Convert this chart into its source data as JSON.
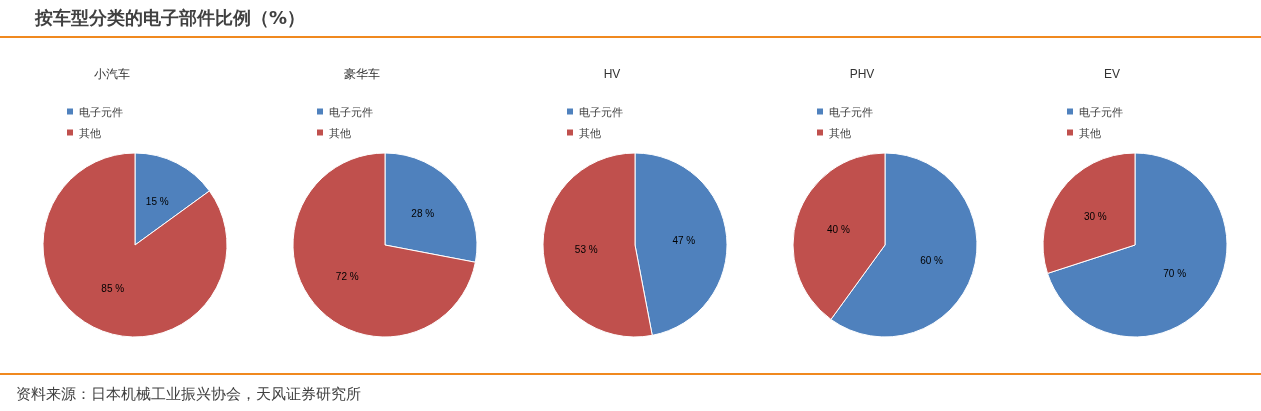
{
  "chart_data": [
    {
      "type": "other",
      "title": "按车型分类的电子部件比例（%）",
      "annotations": [
        "资料来源：日本机械工业振兴协会，天风证券研究所"
      ]
    },
    {
      "type": "pie",
      "title": "小汽车",
      "categories": [
        "电子元件",
        "其他"
      ],
      "values": [
        15,
        85
      ],
      "colors": [
        "#4f81bd",
        "#c0504d"
      ],
      "value_labels": [
        "15 %",
        "85 %"
      ],
      "legend": "top left"
    },
    {
      "type": "pie",
      "title": "豪华车",
      "categories": [
        "电子元件",
        "其他"
      ],
      "values": [
        28,
        72
      ],
      "colors": [
        "#4f81bd",
        "#c0504d"
      ],
      "value_labels": [
        "28 %",
        "72 %"
      ],
      "legend": "top left"
    },
    {
      "type": "pie",
      "title": "HV",
      "categories": [
        "电子元件",
        "其他"
      ],
      "values": [
        47,
        53
      ],
      "colors": [
        "#4f81bd",
        "#c0504d"
      ],
      "value_labels": [
        "47 %",
        "53 %"
      ],
      "legend": "top left"
    },
    {
      "type": "pie",
      "title": "PHV",
      "categories": [
        "电子元件",
        "其他"
      ],
      "values": [
        60,
        40
      ],
      "colors": [
        "#4f81bd",
        "#c0504d"
      ],
      "value_labels": [
        "60 %",
        "40 %"
      ],
      "legend": "top left"
    },
    {
      "type": "pie",
      "title": "EV",
      "categories": [
        "电子元件",
        "其他"
      ],
      "values": [
        70,
        30
      ],
      "colors": [
        "#4f81bd",
        "#c0504d"
      ],
      "value_labels": [
        "70 %",
        "30 %"
      ],
      "legend": "top left"
    }
  ]
}
